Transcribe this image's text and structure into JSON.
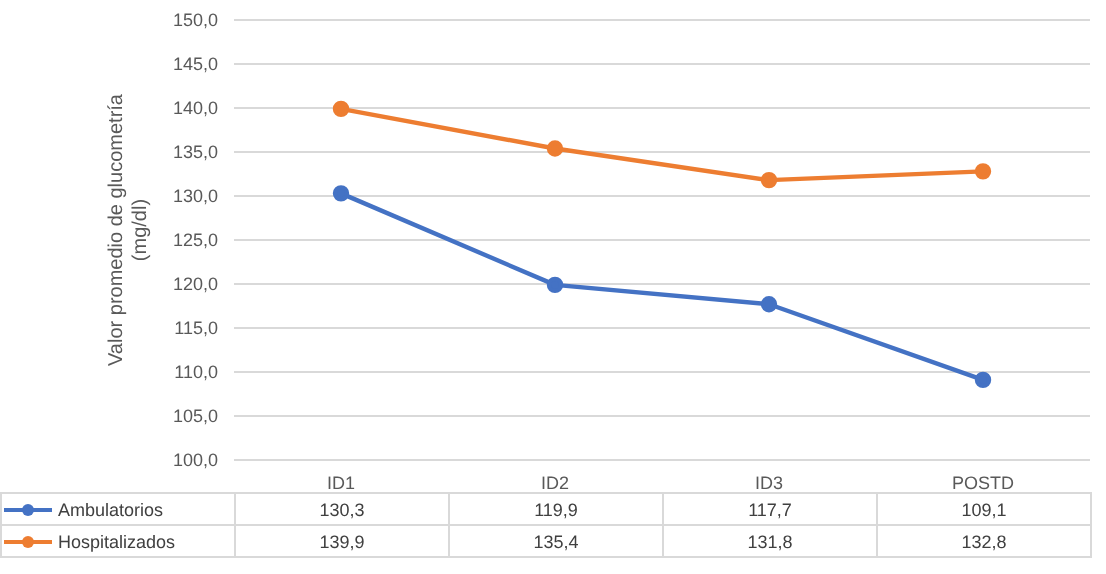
{
  "chart_data": {
    "type": "line",
    "ylabel": "Valor promedio de glucometría (mg/dl)",
    "categories": [
      "ID1",
      "ID2",
      "ID3",
      "POSTD"
    ],
    "series": [
      {
        "name": "Ambulatorios",
        "color": "#4472c4",
        "values": [
          130.3,
          119.9,
          117.7,
          109.1
        ],
        "value_labels": [
          "130,3",
          "119,9",
          "117,7",
          "109,1"
        ]
      },
      {
        "name": "Hospitalizados",
        "color": "#ed7d31",
        "values": [
          139.9,
          135.4,
          131.8,
          132.8
        ],
        "value_labels": [
          "139,9",
          "135,4",
          "131,8",
          "132,8"
        ]
      }
    ],
    "ylim": [
      100,
      150
    ],
    "yticks": [
      {
        "value": 100,
        "label": "100,0"
      },
      {
        "value": 105,
        "label": "105,0"
      },
      {
        "value": 110,
        "label": "110,0"
      },
      {
        "value": 115,
        "label": "115,0"
      },
      {
        "value": 120,
        "label": "120,0"
      },
      {
        "value": 125,
        "label": "125,0"
      },
      {
        "value": 130,
        "label": "130,0"
      },
      {
        "value": 135,
        "label": "135,0"
      },
      {
        "value": 140,
        "label": "140,0"
      },
      {
        "value": 145,
        "label": "145,0"
      },
      {
        "value": 150,
        "label": "150,0"
      }
    ],
    "grid": "y",
    "legend": "bottom",
    "marker": "circle",
    "line_style": "solid"
  }
}
